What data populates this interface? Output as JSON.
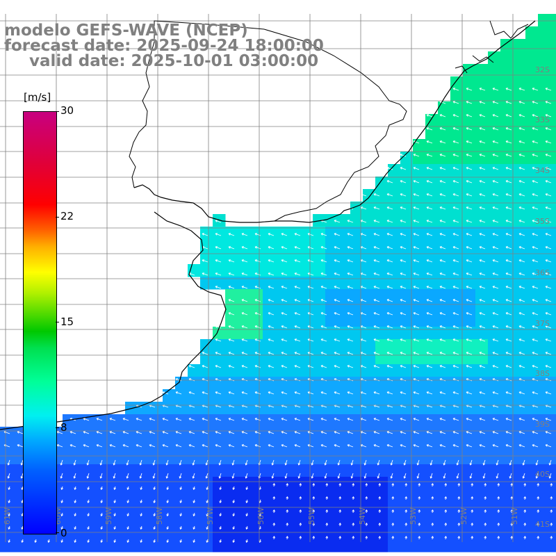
{
  "title": {
    "model": "modelo GEFS-WAVE (NCEP)",
    "forecast": "forecast date: 2025-09-24 18:00:00",
    "valid": "valid date: 2025-10-01 03:00:00"
  },
  "colorbar": {
    "unit": "[m/s]",
    "min": 0,
    "max": 30,
    "ticks": [
      "30",
      "22",
      "15",
      "8",
      "0"
    ]
  },
  "lat_labels": [
    "32S",
    "33S",
    "34S",
    "35S",
    "36S",
    "37S",
    "38S",
    "39S",
    "40S",
    "41S"
  ],
  "lon_labels": [
    "61W",
    "60W",
    "59W",
    "58W",
    "57W",
    "56W",
    "55W",
    "54W",
    "53W",
    "52W",
    "51W"
  ],
  "colors": {
    "land": "#ffffff",
    "grid": "#808080",
    "coast": "#000000",
    "arrows": "#ffffff",
    "labels": "#808080"
  }
}
